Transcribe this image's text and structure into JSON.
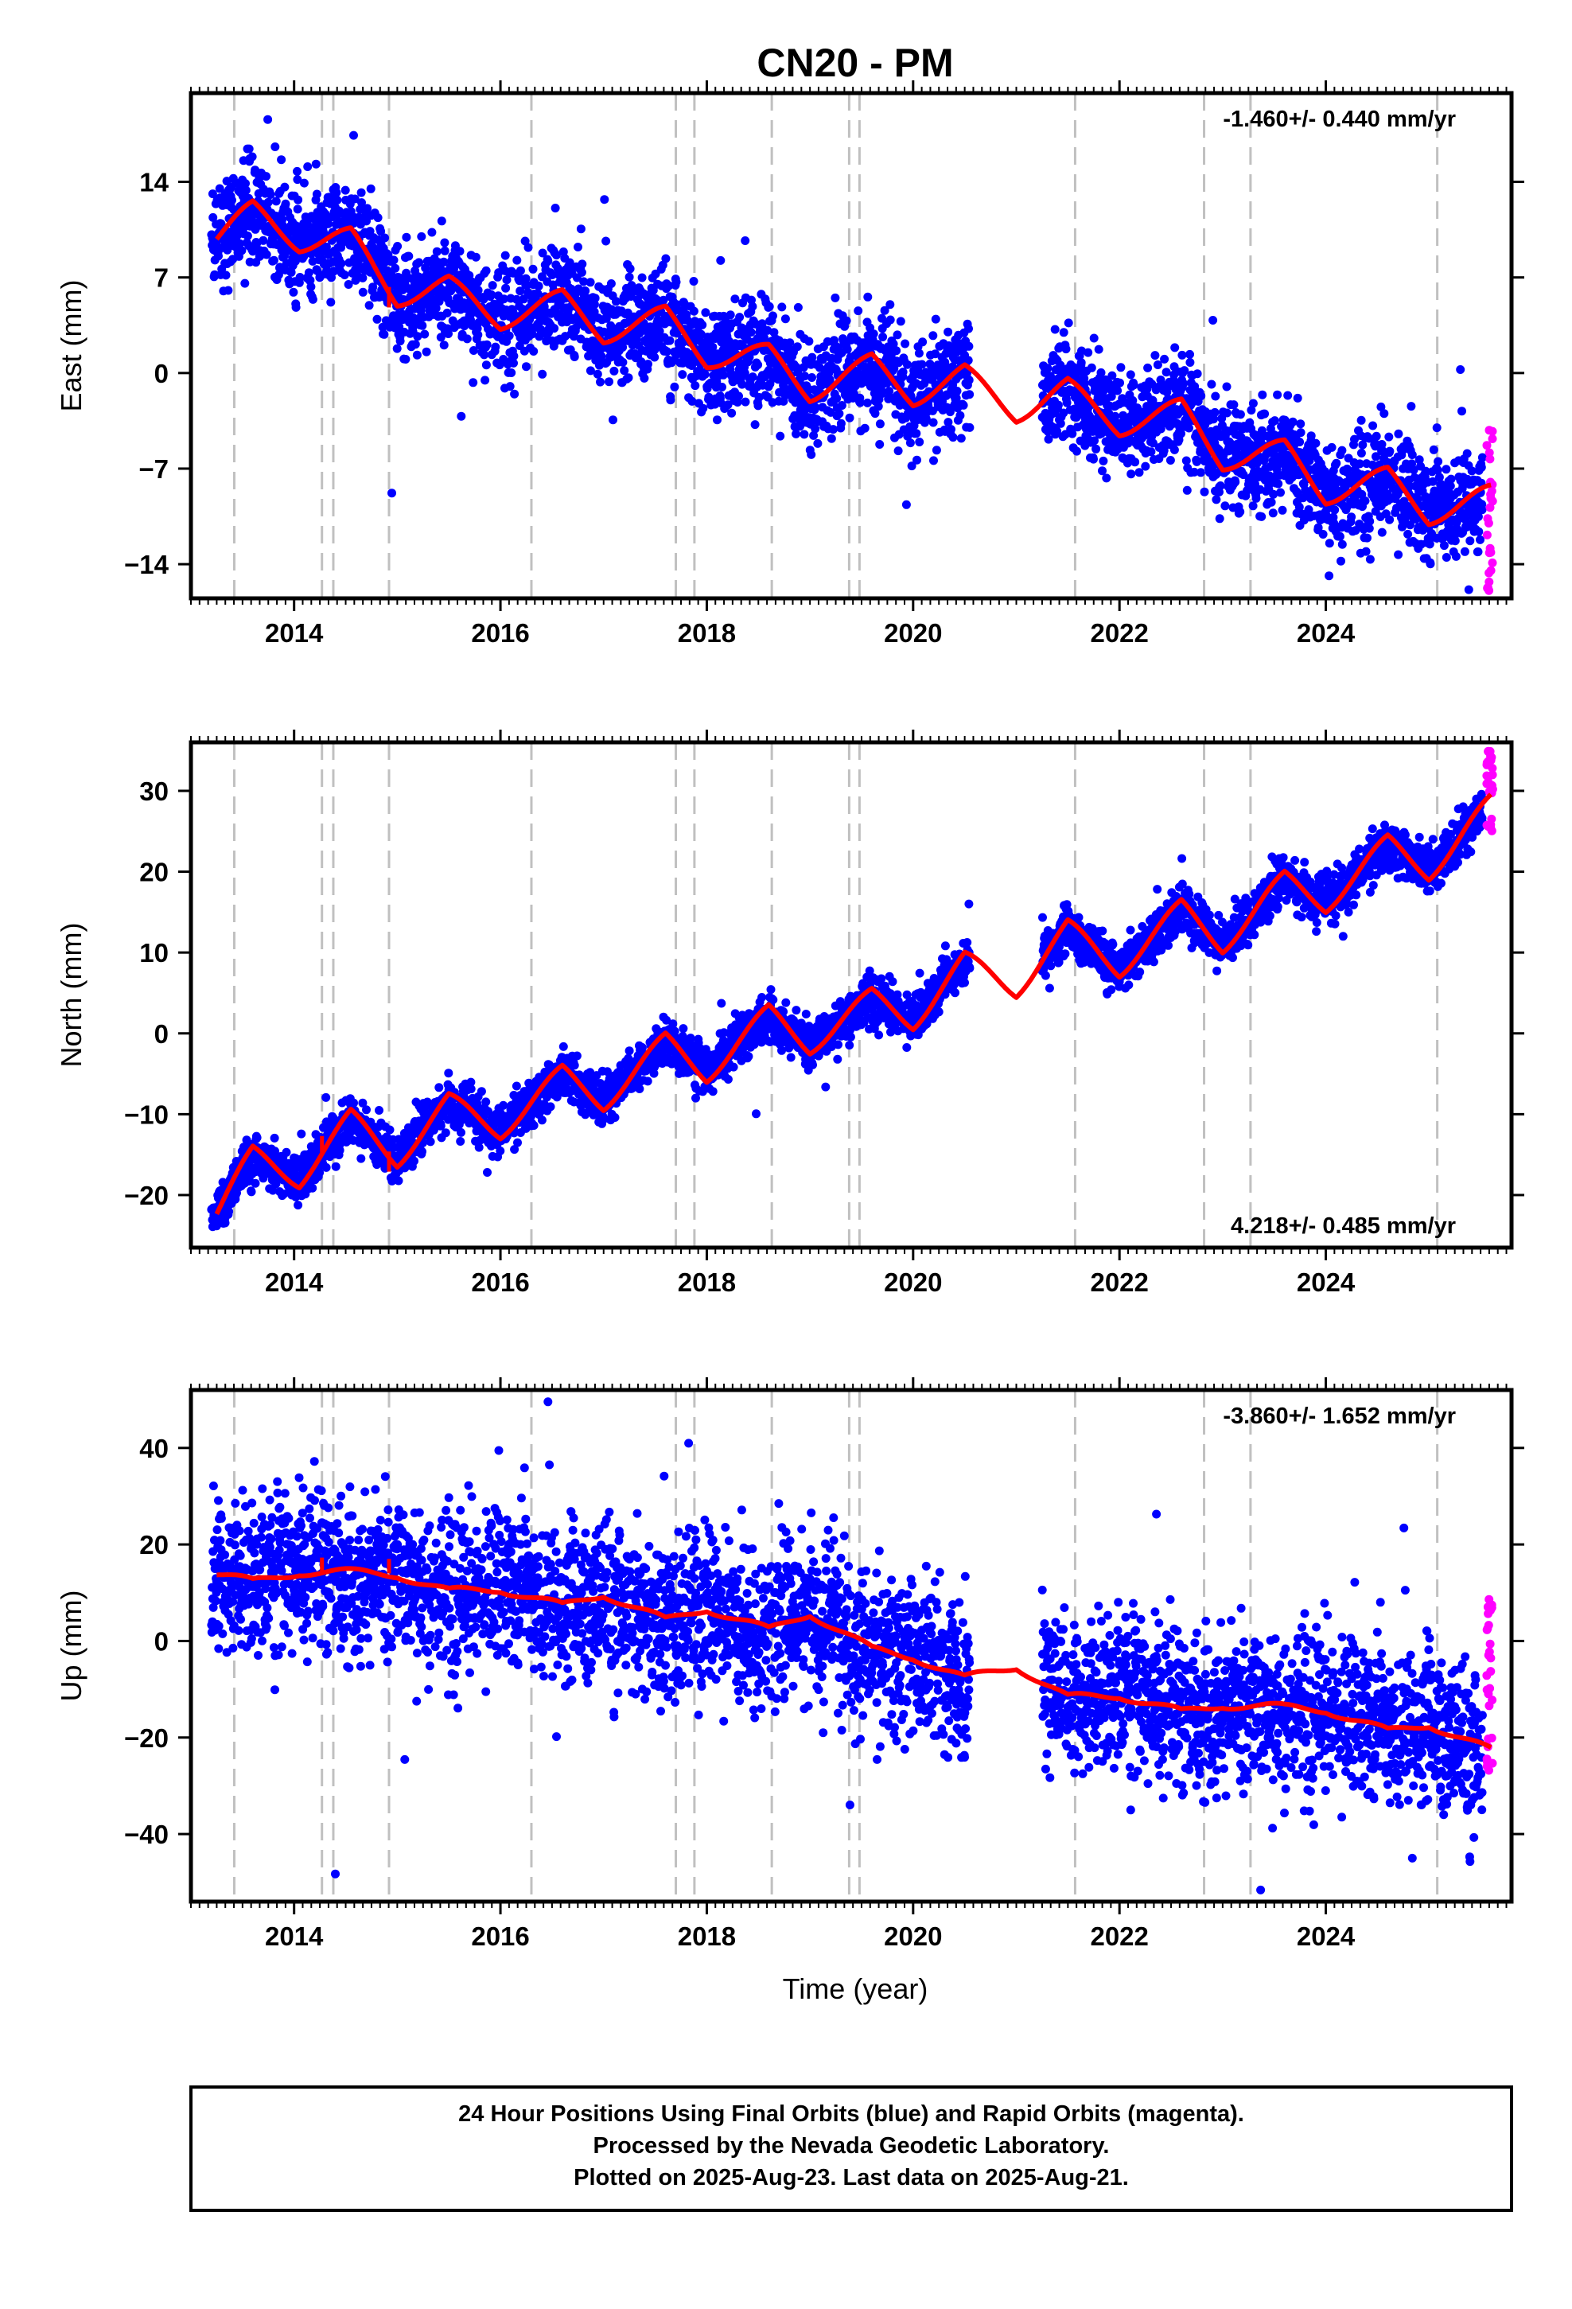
{
  "chart_data": {
    "type": "scatter",
    "title": "CN20 - PM",
    "xlabel": "Time (year)",
    "xlim": [
      2013.0,
      2025.8
    ],
    "x_ticks": [
      2014,
      2016,
      2018,
      2020,
      2022,
      2024
    ],
    "x_tick_labels": [
      "2014",
      "2016",
      "2018",
      "2020",
      "2022",
      "2024"
    ],
    "events": [
      2013.42,
      2014.27,
      2014.38,
      2014.92,
      2016.3,
      2017.7,
      2017.88,
      2018.63,
      2019.38,
      2019.48,
      2021.57,
      2022.82,
      2023.27,
      2025.08
    ],
    "grid": false,
    "series_styles": {
      "final_orbits": {
        "color": "#0000ff",
        "marker": "dot"
      },
      "rapid_orbits": {
        "color": "#ff00ff",
        "marker": "dot"
      },
      "model": {
        "color": "#ff0000",
        "style": "line"
      },
      "events": {
        "color": "#c0c0c0",
        "style": "dashed"
      }
    },
    "data_gaps": [
      [
        2020.55,
        2021.25
      ]
    ],
    "panels": [
      {
        "ylabel": "East (mm)",
        "ylim": [
          -16.5,
          20.5
        ],
        "y_ticks": [
          -14,
          -7,
          0,
          7,
          14
        ],
        "y_tick_labels": [
          "−14",
          "−7",
          "0",
          "7",
          "14"
        ],
        "rate_text": "-1.460+/- 0.440 mm/yr",
        "rate_position": "top-right",
        "trend": {
          "x": [
            2013.2,
            2025.6
          ],
          "y": [
            10.2,
            -9.4
          ]
        },
        "seasonal_amplitude": 1.6,
        "scatter_sd": 1.9,
        "rapid_y_range": [
          -16,
          -4
        ],
        "offsets": [
          {
            "x": 2014.92,
            "dy": -1.5
          }
        ],
        "model_x": [
          2013.25,
          2013.6,
          2014.05,
          2014.55,
          2015.0,
          2015.5,
          2016.0,
          2016.6,
          2017.0,
          2017.6,
          2018.0,
          2018.6,
          2019.0,
          2019.6,
          2020.0,
          2020.5,
          2021.0,
          2021.5,
          2022.0,
          2022.6,
          2023.0,
          2023.6,
          2024.0,
          2024.6,
          2025.0,
          2025.6
        ],
        "model_y": [
          10.0,
          12.0,
          9.5,
          10.0,
          5.5,
          6.5,
          3.8,
          5.5,
          2.8,
          4.3,
          1.0,
          1.5,
          -1.5,
          0.8,
          -1.8,
          0.0,
          -3.0,
          -1.0,
          -4.0,
          -2.5,
          -6.5,
          -5.5,
          -9.0,
          -7.5,
          -10.5,
          -8.8
        ],
        "fit_rms": 1.9
      },
      {
        "ylabel": "North (mm)",
        "ylim": [
          -26.5,
          36.0
        ],
        "y_ticks": [
          -20,
          -10,
          0,
          10,
          20,
          30
        ],
        "y_tick_labels": [
          "−20",
          "−10",
          "0",
          "10",
          "20",
          "30"
        ],
        "rate_text": "4.218+/- 0.485 mm/yr",
        "rate_position": "bottom-right",
        "trend": {
          "x": [
            2013.2,
            2025.6
          ],
          "y": [
            -21.0,
            24.5
          ]
        },
        "seasonal_amplitude": 2.8,
        "scatter_sd": 1.4,
        "rapid_y_range": [
          25,
          35
        ],
        "offsets": [
          {
            "x": 2014.27,
            "dy": 2.0
          },
          {
            "x": 2014.92,
            "dy": -2.5
          }
        ],
        "model_x": [
          2013.25,
          2013.6,
          2014.05,
          2014.55,
          2015.0,
          2015.5,
          2016.0,
          2016.6,
          2017.0,
          2017.6,
          2018.0,
          2018.6,
          2019.0,
          2019.6,
          2020.0,
          2020.5,
          2021.0,
          2021.5,
          2022.0,
          2022.6,
          2023.0,
          2023.6,
          2024.0,
          2024.6,
          2025.0,
          2025.6
        ],
        "model_y": [
          -22.0,
          -15.0,
          -18.0,
          -10.5,
          -15.5,
          -8.5,
          -12.0,
          -5.0,
          -8.5,
          -1.0,
          -5.0,
          2.5,
          -1.5,
          4.5,
          1.5,
          9.0,
          5.5,
          13.0,
          8.0,
          15.5,
          11.0,
          19.0,
          16.0,
          23.5,
          20.0,
          28.5
        ],
        "fit_rms": 1.4
      },
      {
        "ylabel": "Up (mm)",
        "ylim": [
          -54.0,
          52.0
        ],
        "y_ticks": [
          -40,
          -20,
          0,
          20,
          40
        ],
        "y_tick_labels": [
          "−40",
          "−20",
          "0",
          "20",
          "40"
        ],
        "rate_text": "-3.860+/- 1.652 mm/yr",
        "rate_position": "top-right",
        "trend": {
          "x": [
            2013.2,
            2025.6
          ],
          "y": [
            13.0,
            -23.0
          ]
        },
        "seasonal_amplitude": 2.5,
        "scatter_sd": 8.0,
        "rapid_y_range": [
          -27,
          10
        ],
        "offsets": [
          {
            "x": 2014.27,
            "dy": 3.0
          },
          {
            "x": 2014.92,
            "dy": 3.0
          }
        ],
        "model_x": [
          2013.25,
          2013.6,
          2014.05,
          2014.55,
          2015.0,
          2015.5,
          2016.0,
          2016.6,
          2017.0,
          2017.6,
          2018.0,
          2018.6,
          2019.0,
          2019.6,
          2020.0,
          2020.5,
          2021.0,
          2021.5,
          2022.0,
          2022.6,
          2023.0,
          2023.6,
          2024.0,
          2024.6,
          2025.0,
          2025.6
        ],
        "model_y": [
          14.0,
          12.0,
          14.5,
          14.0,
          14.0,
          10.0,
          11.0,
          7.0,
          10.0,
          4.0,
          7.0,
          2.0,
          6.0,
          -2.0,
          -3.0,
          -8.0,
          -5.0,
          -12.0,
          -11.0,
          -15.0,
          -13.0,
          -14.0,
          -14.0,
          -19.0,
          -17.0,
          -23.0
        ],
        "fit_rms": 8.0
      }
    ]
  },
  "footer": {
    "line1": "24 Hour Positions Using Final Orbits (blue) and Rapid Orbits (magenta).",
    "line2": "Processed by the Nevada Geodetic Laboratory.",
    "line3": "Plotted on 2025-Aug-23. Last data on 2025-Aug-21."
  }
}
